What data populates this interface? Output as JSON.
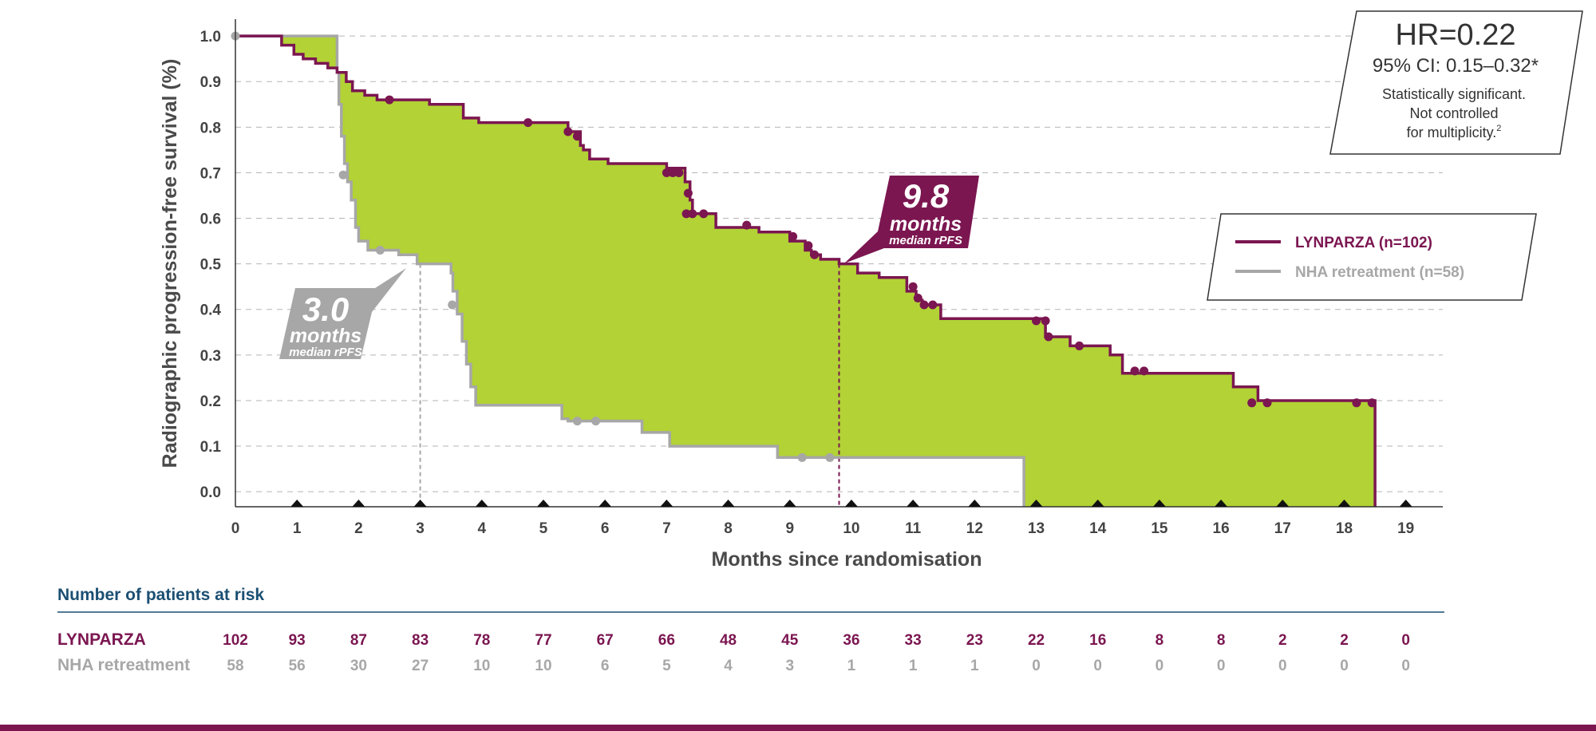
{
  "colors": {
    "lynparza": "#7b1651",
    "nha": "#a7a7a7",
    "fill": "#b2d235",
    "grid": "#b5b5b5",
    "axis": "#333333",
    "risk_title": "#1b4f72",
    "footer_bar": "#7b1651"
  },
  "chart_data": {
    "type": "line",
    "subtype": "kaplan-meier",
    "xlabel": "Months since randomisation",
    "ylabel": "Radiographic progression-free survival (%)",
    "xlim": [
      0,
      19.6
    ],
    "ylim": [
      -0.033,
      1.03
    ],
    "x_ticks": [
      0,
      1,
      2,
      3,
      4,
      5,
      6,
      7,
      8,
      9,
      10,
      11,
      12,
      13,
      14,
      15,
      16,
      17,
      18,
      19
    ],
    "x_tick_labels": [
      "0",
      "1",
      "2",
      "3",
      "4",
      "5",
      "6",
      "7",
      "8",
      "9",
      "10",
      "11",
      "12",
      "13",
      "14",
      "15",
      "16",
      "17",
      "18",
      "19"
    ],
    "y_ticks": [
      0.0,
      0.1,
      0.2,
      0.3,
      0.4,
      0.5,
      0.6,
      0.7,
      0.8,
      0.9,
      1.0
    ],
    "y_tick_labels": [
      "0.0",
      "0.1",
      "0.2",
      "0.3",
      "0.4",
      "0.5",
      "0.6",
      "0.7",
      "0.8",
      "0.9",
      "1.0"
    ],
    "grid": "horizontal-dashed",
    "series": [
      {
        "name": "LYNPARZA (n=102)",
        "color": "#7b1651",
        "steps": [
          [
            0,
            1.0
          ],
          [
            0.75,
            0.98
          ],
          [
            0.95,
            0.96
          ],
          [
            1.1,
            0.95
          ],
          [
            1.3,
            0.94
          ],
          [
            1.5,
            0.93
          ],
          [
            1.65,
            0.92
          ],
          [
            1.8,
            0.9
          ],
          [
            1.9,
            0.88
          ],
          [
            2.1,
            0.87
          ],
          [
            2.3,
            0.86
          ],
          [
            3.15,
            0.85
          ],
          [
            3.7,
            0.82
          ],
          [
            3.95,
            0.81
          ],
          [
            5.4,
            0.79
          ],
          [
            5.6,
            0.76
          ],
          [
            5.65,
            0.75
          ],
          [
            5.75,
            0.73
          ],
          [
            6.05,
            0.72
          ],
          [
            7.0,
            0.71
          ],
          [
            7.3,
            0.68
          ],
          [
            7.38,
            0.64
          ],
          [
            7.42,
            0.61
          ],
          [
            7.8,
            0.58
          ],
          [
            8.5,
            0.57
          ],
          [
            9.0,
            0.55
          ],
          [
            9.25,
            0.53
          ],
          [
            9.35,
            0.52
          ],
          [
            9.5,
            0.51
          ],
          [
            9.8,
            0.5
          ],
          [
            10.1,
            0.48
          ],
          [
            10.45,
            0.47
          ],
          [
            10.9,
            0.44
          ],
          [
            11.05,
            0.42
          ],
          [
            11.15,
            0.41
          ],
          [
            11.45,
            0.38
          ],
          [
            12.75,
            0.38
          ],
          [
            13.15,
            0.34
          ],
          [
            13.55,
            0.32
          ],
          [
            14.2,
            0.3
          ],
          [
            14.4,
            0.26
          ],
          [
            15.5,
            0.26
          ],
          [
            16.2,
            0.23
          ],
          [
            16.6,
            0.2
          ],
          [
            18.5,
            0.2
          ],
          [
            18.5,
            -0.033
          ]
        ],
        "censor": [
          [
            2.5,
            0.86
          ],
          [
            4.75,
            0.81
          ],
          [
            5.4,
            0.79
          ],
          [
            5.55,
            0.78
          ],
          [
            7.0,
            0.7
          ],
          [
            7.1,
            0.7
          ],
          [
            7.2,
            0.7
          ],
          [
            7.35,
            0.655
          ],
          [
            7.32,
            0.61
          ],
          [
            7.42,
            0.61
          ],
          [
            7.6,
            0.61
          ],
          [
            8.3,
            0.585
          ],
          [
            9.05,
            0.56
          ],
          [
            9.3,
            0.54
          ],
          [
            9.4,
            0.52
          ],
          [
            11.0,
            0.45
          ],
          [
            11.08,
            0.425
          ],
          [
            11.18,
            0.41
          ],
          [
            11.32,
            0.41
          ],
          [
            13.0,
            0.375
          ],
          [
            13.15,
            0.375
          ],
          [
            13.2,
            0.34
          ],
          [
            13.7,
            0.32
          ],
          [
            14.6,
            0.265
          ],
          [
            14.75,
            0.265
          ],
          [
            16.5,
            0.195
          ],
          [
            16.75,
            0.195
          ],
          [
            18.2,
            0.195
          ],
          [
            18.45,
            0.195
          ]
        ]
      },
      {
        "name": "NHA retreatment (n=58)",
        "color": "#a7a7a7",
        "steps": [
          [
            0,
            1.0
          ],
          [
            1.65,
            0.92
          ],
          [
            1.68,
            0.85
          ],
          [
            1.72,
            0.78
          ],
          [
            1.77,
            0.72
          ],
          [
            1.82,
            0.68
          ],
          [
            1.88,
            0.64
          ],
          [
            1.95,
            0.58
          ],
          [
            2.0,
            0.55
          ],
          [
            2.15,
            0.53
          ],
          [
            2.65,
            0.52
          ],
          [
            2.95,
            0.5
          ],
          [
            3.5,
            0.48
          ],
          [
            3.53,
            0.44
          ],
          [
            3.6,
            0.39
          ],
          [
            3.68,
            0.33
          ],
          [
            3.75,
            0.28
          ],
          [
            3.82,
            0.23
          ],
          [
            3.9,
            0.19
          ],
          [
            5.3,
            0.16
          ],
          [
            5.4,
            0.155
          ],
          [
            6.6,
            0.13
          ],
          [
            7.05,
            0.1
          ],
          [
            8.8,
            0.075
          ],
          [
            12.8,
            0.075
          ],
          [
            12.8,
            -0.033
          ]
        ],
        "censor": [
          [
            0.0,
            1.0
          ],
          [
            1.75,
            0.695
          ],
          [
            2.35,
            0.53
          ],
          [
            3.52,
            0.41
          ],
          [
            5.55,
            0.155
          ],
          [
            5.85,
            0.155
          ],
          [
            9.2,
            0.075
          ],
          [
            9.65,
            0.075
          ]
        ]
      }
    ],
    "tick_markers": [
      1,
      2,
      3,
      4,
      5,
      6,
      7,
      8,
      9,
      10,
      11,
      12,
      13,
      14,
      15,
      16,
      17,
      18,
      19
    ],
    "median_lines": [
      {
        "series": "NHA retreatment",
        "x": 3.0,
        "y": 0.5
      },
      {
        "series": "LYNPARZA",
        "x": 9.8,
        "y": 0.5
      }
    ],
    "annotations": {
      "lynparza_median": {
        "value": "9.8",
        "unit": "months",
        "caption": "median rPFS"
      },
      "nha_median": {
        "value": "3.0",
        "unit": "months",
        "caption": "median rPFS"
      },
      "hr_box": {
        "line1": "HR=0.22",
        "line2": "95% CI: 0.15–0.32*",
        "line3": "Statistically significant.",
        "line4": "Not controlled",
        "line5": "for multiplicity.",
        "line5_sup": "2"
      }
    },
    "legend": {
      "placement": "right",
      "entries": [
        "LYNPARZA (n=102)",
        "NHA retreatment (n=58)"
      ]
    },
    "risk_table": {
      "title": "Number of patients at risk",
      "rows": [
        {
          "label": "LYNPARZA",
          "values": [
            "102",
            "93",
            "87",
            "83",
            "78",
            "77",
            "67",
            "66",
            "48",
            "45",
            "36",
            "33",
            "23",
            "22",
            "16",
            "8",
            "8",
            "2",
            "2",
            "0"
          ]
        },
        {
          "label": "NHA retreatment",
          "values": [
            "58",
            "56",
            "30",
            "27",
            "10",
            "10",
            "6",
            "5",
            "4",
            "3",
            "1",
            "1",
            "1",
            "0",
            "0",
            "0",
            "0",
            "0",
            "0",
            "0"
          ]
        }
      ]
    }
  }
}
